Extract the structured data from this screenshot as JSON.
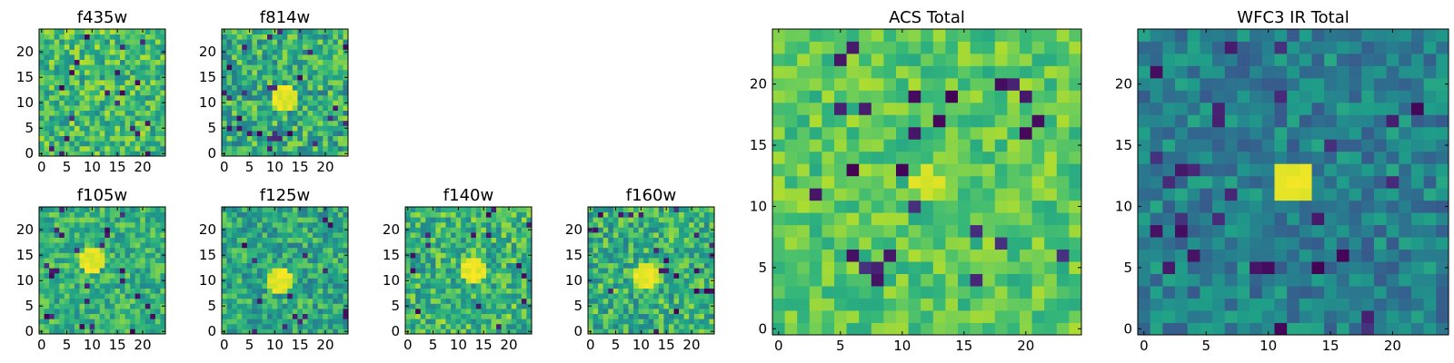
{
  "chart_data": [
    {
      "type": "heatmap",
      "title": "f435w",
      "x_ticks": [
        0,
        5,
        10,
        15,
        20
      ],
      "y_ticks": [
        0,
        5,
        10,
        15,
        20
      ],
      "xlim": [
        -0.5,
        24.5
      ],
      "ylim": [
        -0.5,
        24.5
      ],
      "grid_size": 25,
      "colormap": "viridis",
      "value_mean": 0.68,
      "value_spread": 0.22,
      "hotspot": null
    },
    {
      "type": "heatmap",
      "title": "f814w",
      "x_ticks": [
        0,
        5,
        10,
        15,
        20
      ],
      "y_ticks": [
        0,
        5,
        10,
        15,
        20
      ],
      "xlim": [
        -0.5,
        24.5
      ],
      "ylim": [
        -0.5,
        24.5
      ],
      "grid_size": 25,
      "colormap": "viridis",
      "value_mean": 0.62,
      "value_spread": 0.24,
      "hotspot": {
        "x": 12,
        "y": 11,
        "radius": 2.5
      }
    },
    {
      "type": "heatmap",
      "title": "f105w",
      "x_ticks": [
        0,
        5,
        10,
        15,
        20
      ],
      "y_ticks": [
        0,
        5,
        10,
        15,
        20
      ],
      "xlim": [
        -0.5,
        24.5
      ],
      "ylim": [
        -0.5,
        24.5
      ],
      "grid_size": 25,
      "colormap": "viridis",
      "value_mean": 0.64,
      "value_spread": 0.18,
      "hotspot": {
        "x": 10,
        "y": 14,
        "radius": 2.5
      }
    },
    {
      "type": "heatmap",
      "title": "f125w",
      "x_ticks": [
        0,
        5,
        10,
        15,
        20
      ],
      "y_ticks": [
        0,
        5,
        10,
        15,
        20
      ],
      "xlim": [
        -0.5,
        24.5
      ],
      "ylim": [
        -0.5,
        24.5
      ],
      "grid_size": 25,
      "colormap": "viridis",
      "value_mean": 0.6,
      "value_spread": 0.2,
      "hotspot": {
        "x": 11,
        "y": 10,
        "radius": 2.5
      }
    },
    {
      "type": "heatmap",
      "title": "f140w",
      "x_ticks": [
        0,
        5,
        10,
        15,
        20
      ],
      "y_ticks": [
        0,
        5,
        10,
        15,
        20
      ],
      "xlim": [
        -0.5,
        24.5
      ],
      "ylim": [
        -0.5,
        24.5
      ],
      "grid_size": 25,
      "colormap": "viridis",
      "value_mean": 0.66,
      "value_spread": 0.22,
      "hotspot": {
        "x": 13,
        "y": 12,
        "radius": 2.5
      }
    },
    {
      "type": "heatmap",
      "title": "f160w",
      "x_ticks": [
        0,
        5,
        10,
        15,
        20
      ],
      "y_ticks": [
        0,
        5,
        10,
        15,
        20
      ],
      "xlim": [
        -0.5,
        24.5
      ],
      "ylim": [
        -0.5,
        24.5
      ],
      "grid_size": 25,
      "colormap": "viridis",
      "value_mean": 0.64,
      "value_spread": 0.22,
      "hotspot": {
        "x": 11,
        "y": 11,
        "radius": 2.5
      }
    },
    {
      "type": "heatmap",
      "title": "ACS Total",
      "x_ticks": [
        0,
        5,
        10,
        15,
        20
      ],
      "y_ticks": [
        0,
        5,
        10,
        15,
        20
      ],
      "xlim": [
        -0.5,
        24.5
      ],
      "ylim": [
        -0.5,
        24.5
      ],
      "grid_size": 25,
      "colormap": "viridis",
      "value_mean": 0.74,
      "value_spread": 0.14,
      "hotspot": {
        "x": 12,
        "y": 12,
        "radius": 1.2
      }
    },
    {
      "type": "heatmap",
      "title": "WFC3 IR Total",
      "x_ticks": [
        0,
        5,
        10,
        15,
        20
      ],
      "y_ticks": [
        0,
        5,
        10,
        15,
        20
      ],
      "xlim": [
        -0.5,
        24.5
      ],
      "ylim": [
        -0.5,
        24.5
      ],
      "grid_size": 25,
      "colormap": "viridis",
      "value_mean": 0.44,
      "value_spread": 0.16,
      "hotspot": {
        "x": 12,
        "y": 12,
        "radius": 1.6
      }
    }
  ]
}
